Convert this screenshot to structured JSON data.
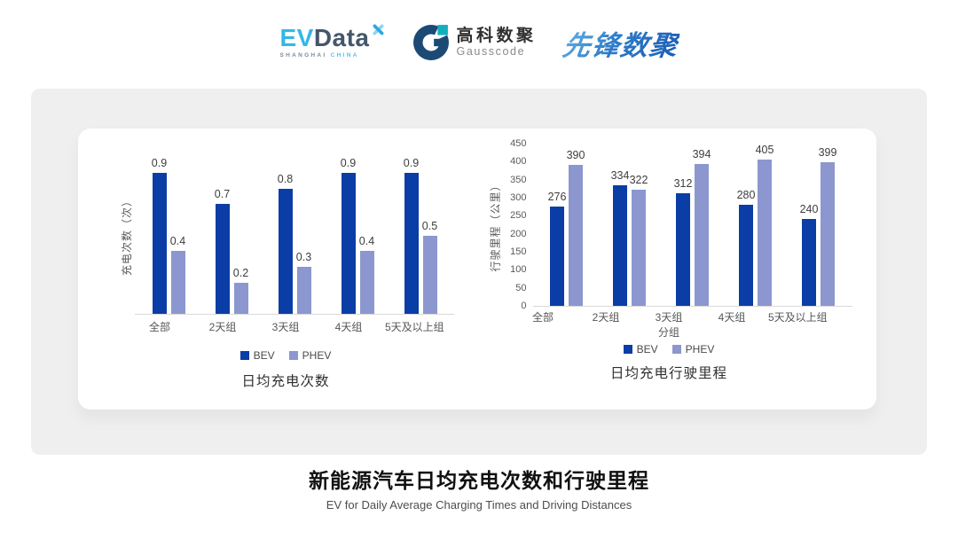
{
  "header": {
    "evdata": {
      "ev": "EV",
      "data": "Data",
      "sub_left": "SHANGHAI",
      "sub_right": "CHINA"
    },
    "gausscode": {
      "cn": "高科数聚",
      "en": "Gausscode"
    },
    "xianfeng": {
      "text": "先锋数聚"
    }
  },
  "colors": {
    "bev": "#0b3da6",
    "phev": "#8c97cf",
    "panel_bg": "#efefef",
    "axis_line": "#d9d9d9",
    "evdata_blue": "#35b6e8",
    "evdata_dark": "#44566b",
    "gausscode_navy": "#1c4a74",
    "gausscode_teal": "#12afbe",
    "xianfeng_blue": "#2e7cc9"
  },
  "chart_data": [
    {
      "type": "bar",
      "title": "日均充电次数",
      "ylabel": "充电次数（次）",
      "xlabel": null,
      "categories": [
        "全部",
        "2天组",
        "3天组",
        "4天组",
        "5天及以上组"
      ],
      "series": [
        {
          "name": "BEV",
          "color_key": "bev",
          "values": [
            0.9,
            0.7,
            0.8,
            0.9,
            0.9
          ]
        },
        {
          "name": "PHEV",
          "color_key": "phev",
          "values": [
            0.4,
            0.2,
            0.3,
            0.4,
            0.5
          ]
        }
      ],
      "ylim": [
        0,
        1
      ],
      "y_ticks": null,
      "grid": false,
      "legend_position": "bottom"
    },
    {
      "type": "bar",
      "title": "日均充电行驶里程",
      "ylabel": "行驶里程（公里）",
      "xlabel": "分组",
      "categories": [
        "全部",
        "2天组",
        "3天组",
        "4天组",
        "5天及以上组"
      ],
      "series": [
        {
          "name": "BEV",
          "color_key": "bev",
          "values": [
            276,
            334,
            312,
            280,
            240
          ]
        },
        {
          "name": "PHEV",
          "color_key": "phev",
          "values": [
            390,
            322,
            394,
            405,
            399
          ]
        }
      ],
      "ylim": [
        0,
        450
      ],
      "y_ticks": [
        0,
        50,
        100,
        150,
        200,
        250,
        300,
        350,
        400,
        450
      ],
      "grid": false,
      "legend_position": "bottom"
    }
  ],
  "footer": {
    "title": "新能源汽车日均充电次数和行驶里程",
    "subtitle": "EV for Daily Average Charging Times and Driving Distances"
  }
}
